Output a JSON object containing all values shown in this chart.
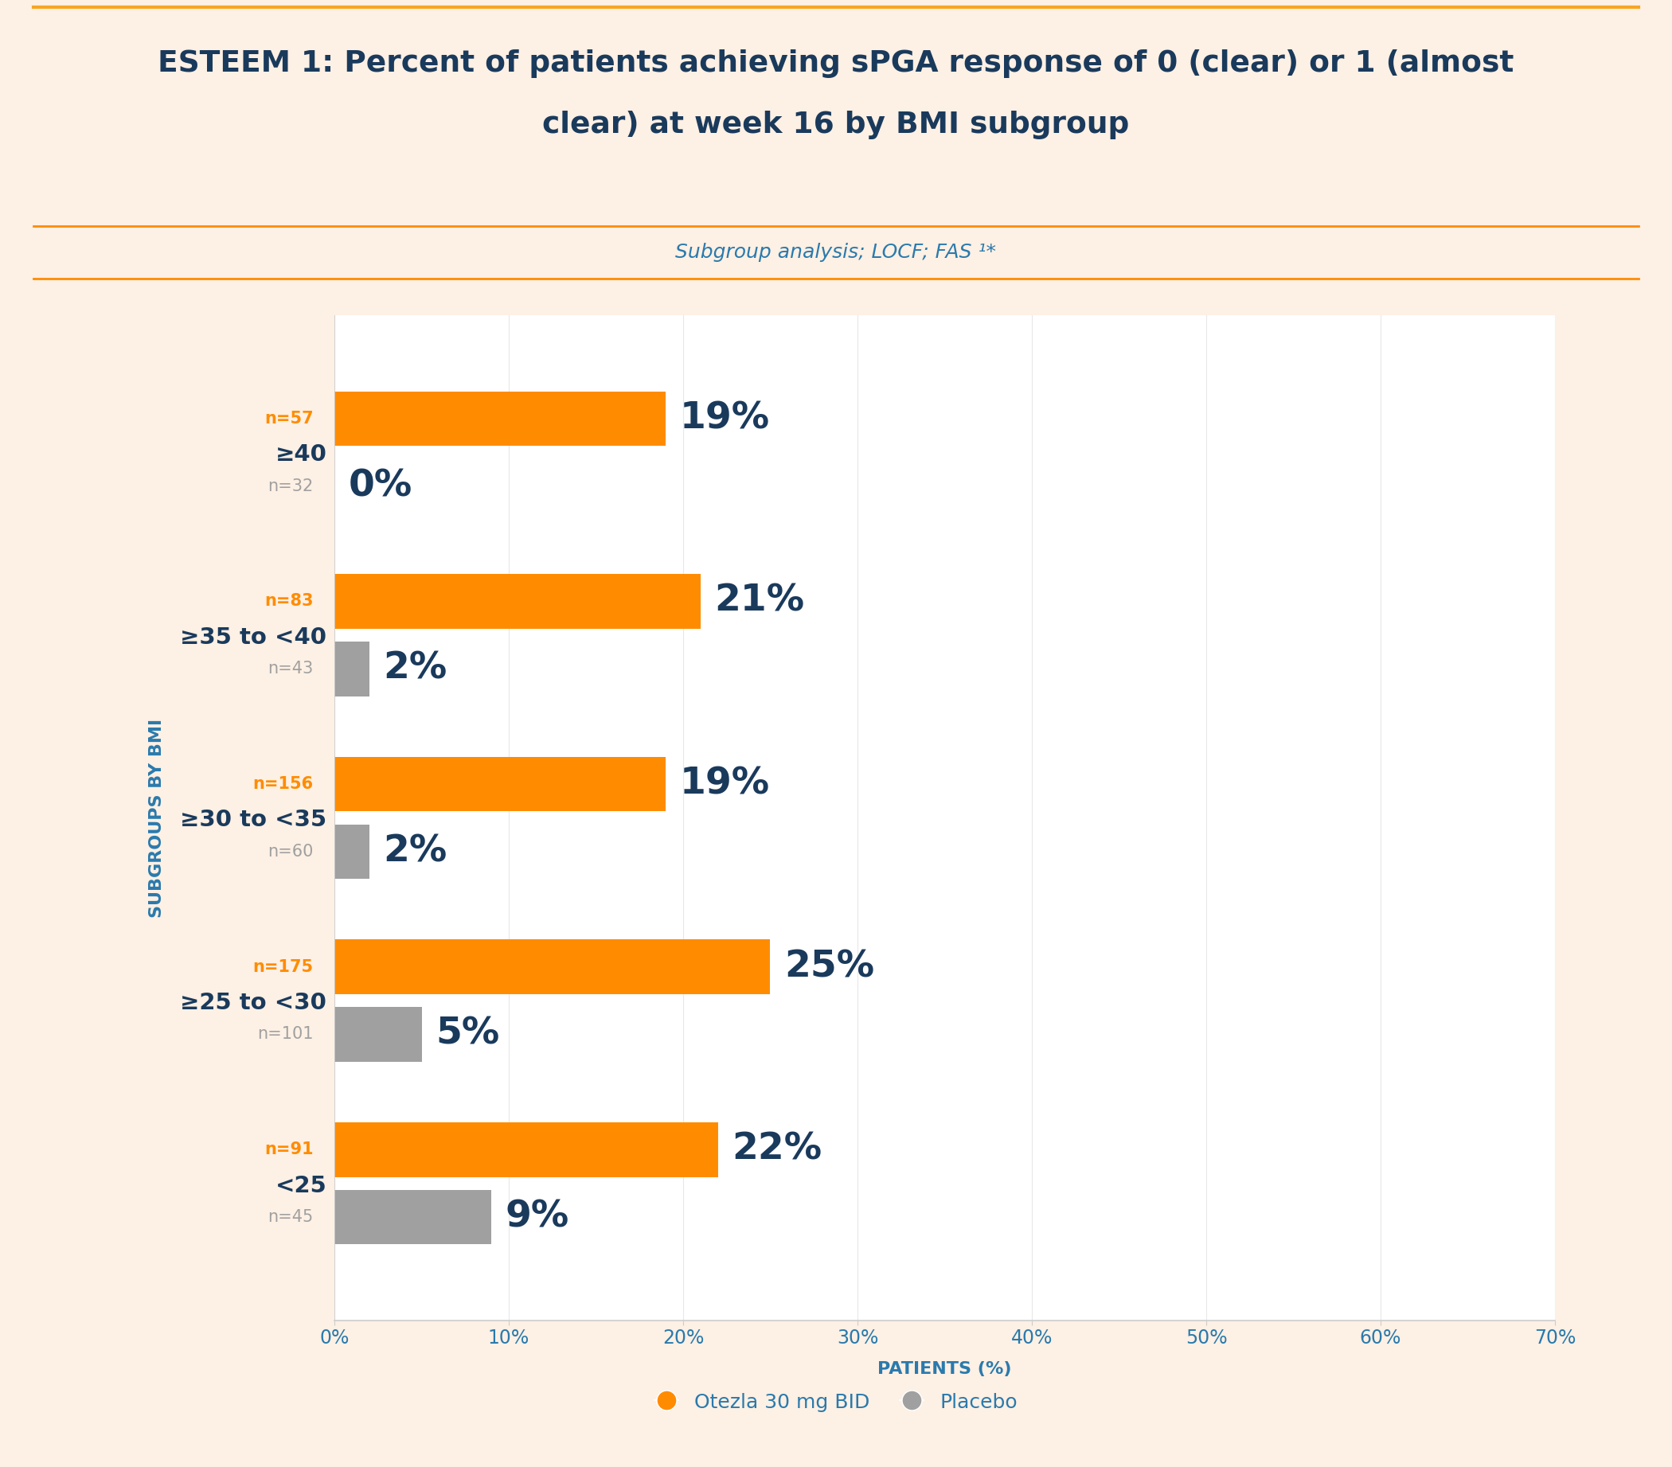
{
  "title_line1": "ESTEEM 1: Percent of patients achieving sPGA response of 0 (clear) or 1 (almost",
  "title_line2": "clear) at week 16 by BMI subgroup",
  "subtitle": "Subgroup analysis; LOCF; FAS ¹*",
  "bg_color": "#fdf0e4",
  "plot_bg_color": "#ffffff",
  "title_color": "#1a3a5c",
  "subtitle_color": "#2a7aad",
  "axis_label_color": "#2a7aad",
  "tick_color": "#2a7aad",
  "ylabel_text": "SUBGROUPS BY BMI",
  "xlabel_text": "PATIENTS (%)",
  "subgroups": [
    "≥40",
    "≥35 to <40",
    "≥30 to <35",
    "≥25 to <30",
    "<25"
  ],
  "otezla_values": [
    19,
    21,
    19,
    25,
    22
  ],
  "placebo_values": [
    0,
    2,
    2,
    5,
    9
  ],
  "otezla_n": [
    "n=57",
    "n=83",
    "n=156",
    "n=175",
    "n=91"
  ],
  "placebo_n": [
    "n=32",
    "n=43",
    "n=60",
    "n=101",
    "n=45"
  ],
  "otezla_color": "#ff8c00",
  "placebo_color": "#a0a0a0",
  "otezla_label": "Otezla 30 mg BID",
  "placebo_label": "Placebo",
  "xlim": [
    0,
    70
  ],
  "xticks": [
    0,
    10,
    20,
    30,
    40,
    50,
    60,
    70
  ],
  "value_label_color": "#1a3a5c",
  "n_label_orange": "#ff8c00",
  "n_label_gray": "#a0a0a0",
  "bar_height": 0.3,
  "separator_color_orange": "#ff8c00",
  "separator_color_gold": "#f5a623"
}
